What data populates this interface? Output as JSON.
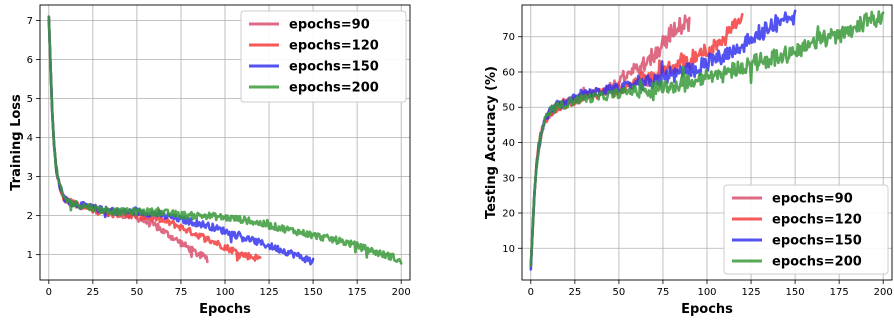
{
  "chart_data": [
    {
      "type": "line",
      "xlabel": "Epochs",
      "ylabel": "Training Loss",
      "xlim": [
        -5,
        205
      ],
      "ylim": [
        0.35,
        7.4
      ],
      "xticks": [
        0,
        25,
        50,
        75,
        100,
        125,
        150,
        175,
        200
      ],
      "yticks": [
        1,
        2,
        3,
        4,
        5,
        6,
        7
      ],
      "grid": true,
      "legend_position": "top-right",
      "series": [
        {
          "name": "epochs=90",
          "color": "#d9506e",
          "x": [
            0,
            1,
            2,
            3,
            4,
            5,
            6,
            7,
            8,
            10,
            12,
            15,
            20,
            25,
            30,
            35,
            40,
            45,
            50,
            55,
            60,
            65,
            70,
            75,
            80,
            85,
            88,
            90
          ],
          "y": [
            7.1,
            5.8,
            4.6,
            3.8,
            3.3,
            3.0,
            2.8,
            2.65,
            2.5,
            2.4,
            2.35,
            2.3,
            2.25,
            2.2,
            2.15,
            2.1,
            2.05,
            2.0,
            1.95,
            1.85,
            1.75,
            1.6,
            1.45,
            1.3,
            1.15,
            1.0,
            0.95,
            0.9
          ]
        },
        {
          "name": "epochs=120",
          "color": "#f53c3c",
          "x": [
            0,
            1,
            2,
            3,
            4,
            5,
            6,
            7,
            8,
            10,
            12,
            15,
            20,
            25,
            30,
            40,
            50,
            60,
            70,
            80,
            90,
            100,
            110,
            115,
            120
          ],
          "y": [
            7.1,
            5.8,
            4.6,
            3.8,
            3.3,
            3.0,
            2.8,
            2.65,
            2.5,
            2.4,
            2.35,
            2.3,
            2.2,
            2.15,
            2.1,
            2.05,
            2.0,
            1.95,
            1.8,
            1.6,
            1.4,
            1.2,
            1.0,
            0.95,
            0.9
          ]
        },
        {
          "name": "epochs=150",
          "color": "#3535ee",
          "x": [
            0,
            1,
            2,
            3,
            4,
            5,
            6,
            7,
            8,
            10,
            12,
            15,
            20,
            25,
            30,
            40,
            50,
            60,
            70,
            80,
            90,
            100,
            110,
            120,
            130,
            140,
            145,
            150
          ],
          "y": [
            7.1,
            5.8,
            4.6,
            3.8,
            3.3,
            3.0,
            2.8,
            2.65,
            2.5,
            2.4,
            2.35,
            2.3,
            2.25,
            2.2,
            2.15,
            2.1,
            2.1,
            2.05,
            1.95,
            1.85,
            1.75,
            1.6,
            1.45,
            1.3,
            1.15,
            1.0,
            0.9,
            0.85
          ]
        },
        {
          "name": "epochs=200",
          "color": "#3a9a3a",
          "x": [
            0,
            1,
            2,
            3,
            4,
            5,
            6,
            7,
            8,
            10,
            12,
            15,
            20,
            25,
            30,
            40,
            50,
            60,
            70,
            80,
            90,
            100,
            110,
            120,
            130,
            140,
            150,
            160,
            170,
            180,
            190,
            195,
            200
          ],
          "y": [
            7.1,
            5.8,
            4.6,
            3.8,
            3.3,
            3.0,
            2.8,
            2.65,
            2.5,
            2.4,
            2.35,
            2.3,
            2.25,
            2.2,
            2.15,
            2.1,
            2.1,
            2.1,
            2.05,
            2.0,
            2.0,
            1.95,
            1.9,
            1.8,
            1.7,
            1.6,
            1.5,
            1.4,
            1.3,
            1.15,
            1.0,
            0.95,
            0.8
          ]
        }
      ]
    },
    {
      "type": "line",
      "xlabel": "Epochs",
      "ylabel": "Testing Accuracy (%)",
      "xlim": [
        -5,
        205
      ],
      "ylim": [
        1,
        79
      ],
      "xticks": [
        0,
        25,
        50,
        75,
        100,
        125,
        150,
        175,
        200
      ],
      "yticks": [
        10,
        20,
        30,
        40,
        50,
        60,
        70
      ],
      "grid": true,
      "legend_position": "bottom-right",
      "series": [
        {
          "name": "epochs=90",
          "color": "#d9506e",
          "x": [
            0,
            1,
            2,
            3,
            4,
            5,
            6,
            8,
            10,
            12,
            15,
            20,
            25,
            30,
            35,
            40,
            45,
            50,
            55,
            60,
            65,
            70,
            75,
            80,
            85,
            90
          ],
          "y": [
            5,
            15,
            25,
            32,
            37,
            40,
            43,
            46,
            48,
            49,
            50,
            51,
            52,
            53,
            54,
            55,
            56,
            57,
            59,
            61,
            63,
            65,
            68,
            71,
            73,
            74
          ]
        },
        {
          "name": "epochs=120",
          "color": "#f53c3c",
          "x": [
            0,
            1,
            2,
            3,
            4,
            5,
            6,
            8,
            10,
            12,
            15,
            20,
            25,
            30,
            40,
            50,
            60,
            70,
            80,
            90,
            100,
            110,
            115,
            120
          ],
          "y": [
            5,
            15,
            25,
            32,
            37,
            40,
            43,
            46,
            48,
            49,
            50,
            51,
            52,
            53,
            54,
            55,
            57,
            59,
            61,
            63,
            66,
            70,
            73,
            75
          ]
        },
        {
          "name": "epochs=150",
          "color": "#3535ee",
          "x": [
            0,
            1,
            2,
            3,
            4,
            5,
            6,
            8,
            10,
            12,
            15,
            20,
            25,
            30,
            40,
            50,
            60,
            70,
            80,
            90,
            100,
            110,
            120,
            130,
            140,
            150
          ],
          "y": [
            4,
            15,
            25,
            32,
            37,
            40,
            43,
            46,
            48,
            49.5,
            50.5,
            51.5,
            52.5,
            53.5,
            54.5,
            55.5,
            56.5,
            57.5,
            59,
            60.5,
            62.5,
            65,
            67.5,
            71,
            74,
            75.5
          ]
        },
        {
          "name": "epochs=200",
          "color": "#3a9a3a",
          "x": [
            0,
            1,
            2,
            3,
            4,
            5,
            6,
            8,
            10,
            12,
            15,
            20,
            25,
            30,
            40,
            50,
            60,
            70,
            80,
            90,
            100,
            110,
            120,
            130,
            140,
            150,
            160,
            170,
            180,
            190,
            200
          ],
          "y": [
            5,
            15,
            25,
            32,
            37,
            40,
            43,
            46,
            48,
            49,
            50,
            51,
            52,
            52.5,
            53,
            54,
            55,
            55.5,
            56,
            57,
            58.5,
            60,
            61.5,
            63,
            64.5,
            66,
            68,
            70,
            72,
            74,
            75.5
          ]
        }
      ]
    }
  ]
}
